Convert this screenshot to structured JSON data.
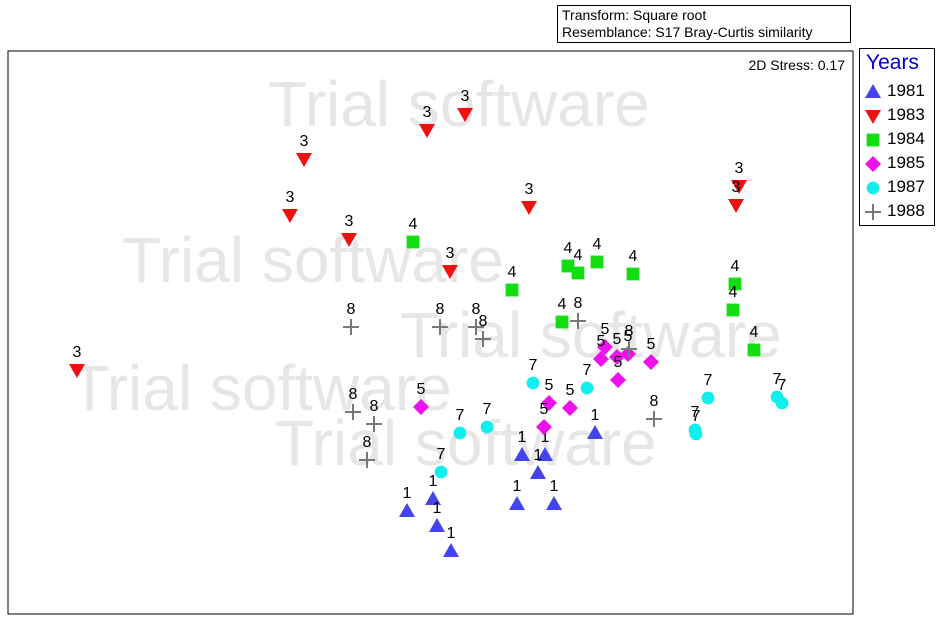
{
  "info": {
    "transform": "Transform: Square root",
    "resemblance": "Resemblance: S17 Bray-Curtis similarity"
  },
  "stress_label": "2D Stress: 0.17",
  "watermark_text": "Trial software",
  "legend": {
    "title": "Years",
    "items": [
      {
        "label": "1981",
        "shape": "triangle-up",
        "color": "#4444ee"
      },
      {
        "label": "1983",
        "shape": "triangle-down",
        "color": "#ee1111"
      },
      {
        "label": "1984",
        "shape": "square",
        "color": "#11dd11"
      },
      {
        "label": "1985",
        "shape": "diamond",
        "color": "#ee11ee"
      },
      {
        "label": "1987",
        "shape": "circle",
        "color": "#11eeee"
      },
      {
        "label": "1988",
        "shape": "plus",
        "color": "#777777"
      }
    ]
  },
  "chart_data": {
    "type": "scatter",
    "title": "",
    "xlabel": "",
    "ylabel": "",
    "grid": false,
    "legend_position": "right",
    "series": [
      {
        "name": "1981",
        "label": "1",
        "points": [
          [
            595,
            433
          ],
          [
            522,
            455
          ],
          [
            545,
            455
          ],
          [
            538,
            473
          ],
          [
            433,
            499
          ],
          [
            517,
            504
          ],
          [
            554,
            504
          ],
          [
            407,
            511
          ],
          [
            437,
            526
          ],
          [
            451,
            551
          ]
        ]
      },
      {
        "name": "1983",
        "label": "3",
        "points": [
          [
            465,
            114
          ],
          [
            427,
            130
          ],
          [
            304,
            159
          ],
          [
            739,
            186
          ],
          [
            736,
            205
          ],
          [
            290,
            215
          ],
          [
            529,
            207
          ],
          [
            349,
            239
          ],
          [
            450,
            271
          ],
          [
            77,
            370
          ]
        ]
      },
      {
        "name": "1984",
        "label": "4",
        "points": [
          [
            413,
            242
          ],
          [
            568,
            266
          ],
          [
            578,
            273
          ],
          [
            597,
            262
          ],
          [
            633,
            274
          ],
          [
            512,
            290
          ],
          [
            562,
            322
          ],
          [
            735,
            284
          ],
          [
            733,
            310
          ],
          [
            754,
            350
          ]
        ]
      },
      {
        "name": "1985",
        "label": "5",
        "points": [
          [
            605,
            347
          ],
          [
            601,
            359
          ],
          [
            628,
            354
          ],
          [
            617,
            357
          ],
          [
            651,
            362
          ],
          [
            618,
            380
          ],
          [
            549,
            403
          ],
          [
            570,
            408
          ],
          [
            544,
            427
          ],
          [
            421,
            407
          ]
        ]
      },
      {
        "name": "1987",
        "label": "7",
        "points": [
          [
            533,
            383
          ],
          [
            587,
            388
          ],
          [
            708,
            398
          ],
          [
            777,
            397
          ],
          [
            782,
            403
          ],
          [
            487,
            427
          ],
          [
            460,
            433
          ],
          [
            695,
            430
          ],
          [
            696,
            434
          ],
          [
            441,
            472
          ]
        ]
      },
      {
        "name": "1988",
        "label": "8",
        "points": [
          [
            351,
            327
          ],
          [
            440,
            327
          ],
          [
            476,
            327
          ],
          [
            483,
            339
          ],
          [
            578,
            321
          ],
          [
            629,
            349
          ],
          [
            353,
            412
          ],
          [
            374,
            424
          ],
          [
            654,
            419
          ],
          [
            367,
            460
          ]
        ]
      }
    ]
  }
}
